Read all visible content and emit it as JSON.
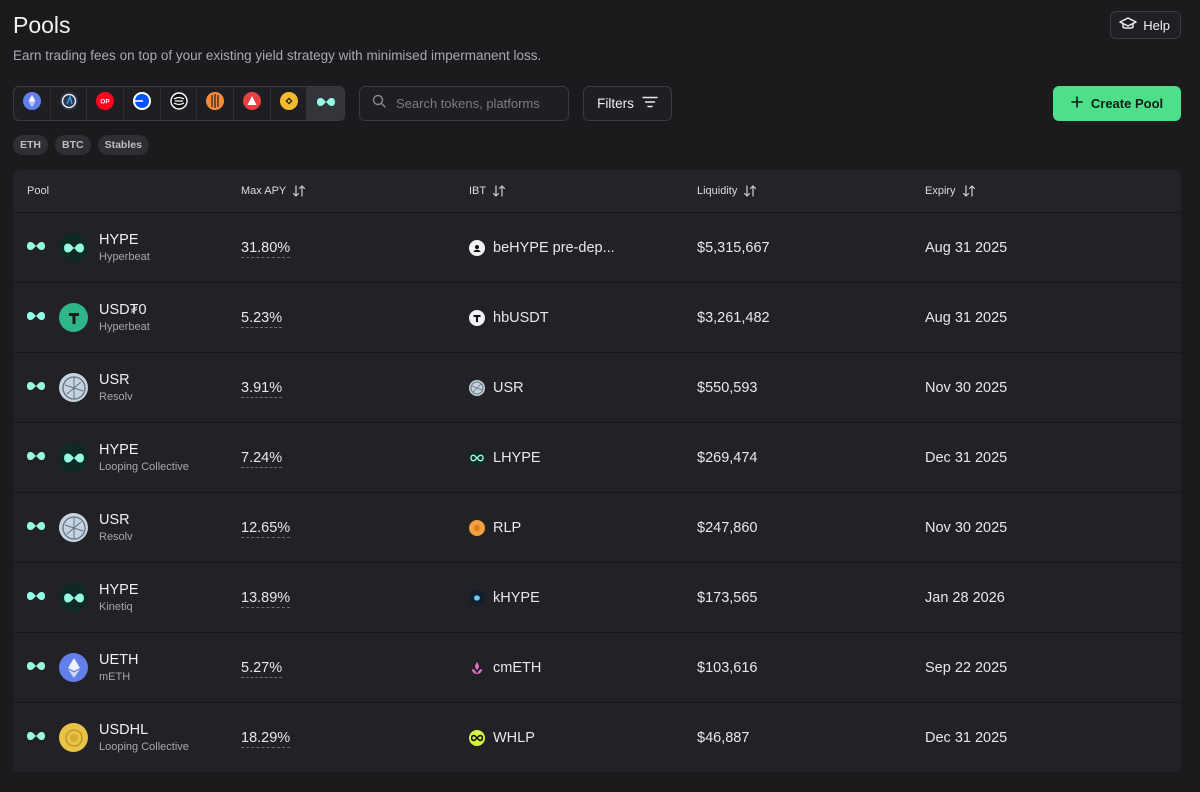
{
  "header": {
    "title": "Pools",
    "subtitle": "Earn trading fees on top of your existing yield strategy with minimised impermanent loss.",
    "help_label": "Help"
  },
  "toolbar": {
    "chains": [
      {
        "icon": "ethereum-icon",
        "color": "#627eea"
      },
      {
        "icon": "arbitrum-icon",
        "color": "#2d374b"
      },
      {
        "icon": "optimism-icon",
        "color": "#ff0420",
        "text": "OP"
      },
      {
        "icon": "base-icon",
        "color": "#0052ff"
      },
      {
        "icon": "sonic-icon",
        "color": "#ffffff"
      },
      {
        "icon": "pendle-icon",
        "color": "#f58b3c"
      },
      {
        "icon": "avalanche-icon",
        "color": "#e84142"
      },
      {
        "icon": "bnb-icon",
        "color": "#f3ba2f"
      },
      {
        "icon": "hyperliquid-icon",
        "color": "#97fce4"
      }
    ],
    "search_placeholder": "Search tokens, platforms",
    "filters_label": "Filters",
    "create_label": "Create Pool"
  },
  "tags": [
    "ETH",
    "BTC",
    "Stables"
  ],
  "table": {
    "headers": {
      "pool": "Pool",
      "apy": "Max APY",
      "ibt": "IBT",
      "liquidity": "Liquidity",
      "expiry": "Expiry"
    },
    "rows": [
      {
        "token": "HYPE",
        "platform": "Hyperbeat",
        "apy": "31.80%",
        "ibt": "beHYPE pre-dep...",
        "liquidity": "$5,315,667",
        "expiry": "Aug 31 2025",
        "logo": "hype-token-icon",
        "ibt_icon": "behype-icon"
      },
      {
        "token": "USD₮0",
        "platform": "Hyperbeat",
        "apy": "5.23%",
        "ibt": "hbUSDT",
        "liquidity": "$3,261,482",
        "expiry": "Aug 31 2025",
        "logo": "usdt0-token-icon",
        "ibt_icon": "hbusdt-icon"
      },
      {
        "token": "USR",
        "platform": "Resolv",
        "apy": "3.91%",
        "ibt": "USR",
        "liquidity": "$550,593",
        "expiry": "Nov 30 2025",
        "logo": "usr-token-icon",
        "ibt_icon": "usr-icon"
      },
      {
        "token": "HYPE",
        "platform": "Looping Collective",
        "apy": "7.24%",
        "ibt": "LHYPE",
        "liquidity": "$269,474",
        "expiry": "Dec 31 2025",
        "logo": "hype-token-icon",
        "ibt_icon": "lhype-icon"
      },
      {
        "token": "USR",
        "platform": "Resolv",
        "apy": "12.65%",
        "ibt": "RLP",
        "liquidity": "$247,860",
        "expiry": "Nov 30 2025",
        "logo": "usr-token-icon",
        "ibt_icon": "rlp-icon"
      },
      {
        "token": "HYPE",
        "platform": "Kinetiq",
        "apy": "13.89%",
        "ibt": "kHYPE",
        "liquidity": "$173,565",
        "expiry": "Jan 28 2026",
        "logo": "hype-token-icon",
        "ibt_icon": "khype-icon"
      },
      {
        "token": "UETH",
        "platform": "mETH",
        "apy": "5.27%",
        "ibt": "cmETH",
        "liquidity": "$103,616",
        "expiry": "Sep 22 2025",
        "logo": "ueth-token-icon",
        "ibt_icon": "cmeth-icon"
      },
      {
        "token": "USDHL",
        "platform": "Looping Collective",
        "apy": "18.29%",
        "ibt": "WHLP",
        "liquidity": "$46,887",
        "expiry": "Dec 31 2025",
        "logo": "usdhl-token-icon",
        "ibt_icon": "whlp-icon"
      }
    ]
  },
  "colors": {
    "accent": "#4ddf8a",
    "hyperliquid": "#97fce4",
    "background": "#1b1b1e"
  }
}
